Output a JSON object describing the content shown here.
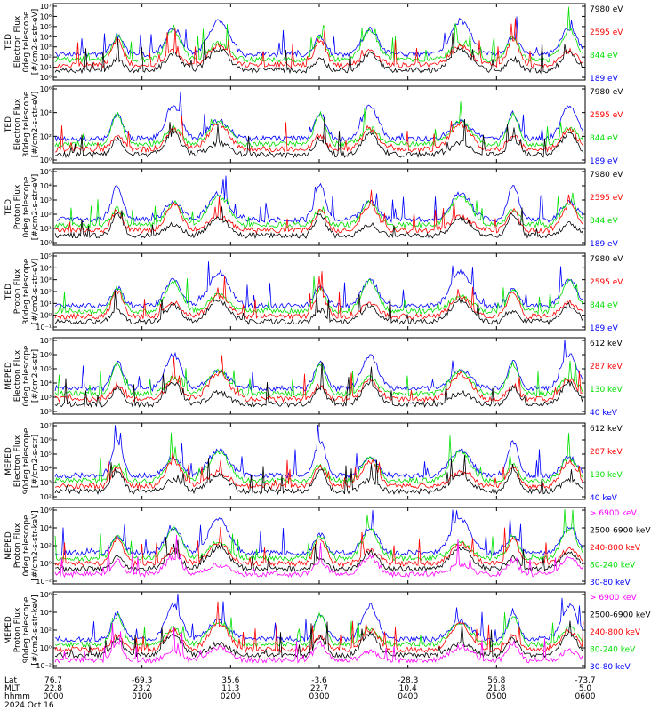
{
  "chart_data": {
    "type": "line",
    "date": "2024 Oct 16",
    "colors": {
      "black": "#000000",
      "red": "#ff0000",
      "green": "#00e000",
      "blue": "#0000ff",
      "magenta": "#ff00ff"
    },
    "x_axis": {
      "row_labels": [
        "Lat",
        "MLT",
        "hhmm"
      ],
      "ticks": [
        {
          "Lat": "76.7",
          "MLT": "22.8",
          "hhmm": "0000"
        },
        {
          "Lat": "-69.3",
          "MLT": "23.2",
          "hhmm": "0100"
        },
        {
          "Lat": "35.6",
          "MLT": "11.3",
          "hhmm": "0200"
        },
        {
          "Lat": "-3.6",
          "MLT": "22.7",
          "hhmm": "0300"
        },
        {
          "Lat": "-28.3",
          "MLT": "10.4",
          "hhmm": "0400"
        },
        {
          "Lat": "56.8",
          "MLT": "21.8",
          "hhmm": "0500"
        },
        {
          "Lat": "-73.7",
          "MLT": "5.0",
          "hhmm": "0600"
        }
      ]
    },
    "panels": [
      {
        "ylabel": [
          "TED",
          "Electron Flux",
          "0deg telescope",
          "[#/cm2-s-str-eV]"
        ],
        "yticks": [
          "10⁷",
          "10⁶",
          "10⁵",
          "10⁴",
          "10³",
          "10²",
          "10¹",
          "10⁰"
        ],
        "series": [
          {
            "name": "7980 eV",
            "color": "black"
          },
          {
            "name": "2595 eV",
            "color": "red"
          },
          {
            "name": "844 eV",
            "color": "green"
          },
          {
            "name": "189 eV",
            "color": "blue"
          }
        ]
      },
      {
        "ylabel": [
          "TED",
          "Electron Flux",
          "30deg telescope",
          "[#/cm2-s-str-eV]"
        ],
        "yticks": [
          "10⁶",
          "10⁴",
          "10²",
          "10⁰"
        ],
        "series": [
          {
            "name": "7980 eV",
            "color": "black"
          },
          {
            "name": "2595 eV",
            "color": "red"
          },
          {
            "name": "844 eV",
            "color": "green"
          },
          {
            "name": "189 eV",
            "color": "blue"
          }
        ]
      },
      {
        "ylabel": [
          "TED",
          "Proton Flux",
          "0deg telescope",
          "[#/cm2-s-str-eV]"
        ],
        "yticks": [
          "10⁵",
          "10⁴",
          "10³",
          "10²",
          "10¹",
          "10⁰"
        ],
        "series": [
          {
            "name": "7980 eV",
            "color": "black"
          },
          {
            "name": "2595 eV",
            "color": "red"
          },
          {
            "name": "844 eV",
            "color": "green"
          },
          {
            "name": "189 eV",
            "color": "blue"
          }
        ]
      },
      {
        "ylabel": [
          "TED",
          "Proton Flux",
          "30deg telescope",
          "[#/cm2-s-str-eV]"
        ],
        "yticks": [
          "10⁵",
          "10⁴",
          "10³",
          "10²",
          "10¹",
          "10⁰",
          "10⁻¹"
        ],
        "series": [
          {
            "name": "7980 eV",
            "color": "black"
          },
          {
            "name": "2595 eV",
            "color": "red"
          },
          {
            "name": "844 eV",
            "color": "green"
          },
          {
            "name": "189 eV",
            "color": "blue"
          }
        ]
      },
      {
        "ylabel": [
          "MEPED",
          "Electron Flux",
          "0deg telescope",
          "[#/cm2-s-str]"
        ],
        "yticks": [
          "10⁷",
          "10⁶",
          "10⁵",
          "10⁴",
          "10³",
          "10²"
        ],
        "series": [
          {
            "name": "612 keV",
            "color": "black"
          },
          {
            "name": "287 keV",
            "color": "red"
          },
          {
            "name": "130 keV",
            "color": "green"
          },
          {
            "name": "40 keV",
            "color": "blue"
          }
        ]
      },
      {
        "ylabel": [
          "MEPED",
          "Electron Flux",
          "90deg telescope",
          "[#/cm2-s-str]"
        ],
        "yticks": [
          "10⁷",
          "10⁶",
          "10⁵",
          "10⁴",
          "10³",
          "10²"
        ],
        "series": [
          {
            "name": "612 keV",
            "color": "black"
          },
          {
            "name": "287 keV",
            "color": "red"
          },
          {
            "name": "130 keV",
            "color": "green"
          },
          {
            "name": "40 keV",
            "color": "blue"
          }
        ]
      },
      {
        "ylabel": [
          "MEPED",
          "Proton Flux",
          "0deg telescope",
          "[#/cm2-s-str-keV]"
        ],
        "yticks": [
          "10⁶",
          "10⁴",
          "10²",
          "10⁰",
          "10⁻²"
        ],
        "series": [
          {
            "name": "> 6900 keV",
            "color": "magenta"
          },
          {
            "name": "2500-6900 keV",
            "color": "black"
          },
          {
            "name": "240-800 keV",
            "color": "red"
          },
          {
            "name": "80-240 keV",
            "color": "green"
          },
          {
            "name": "30-80 keV",
            "color": "blue"
          }
        ]
      },
      {
        "ylabel": [
          "MEPED",
          "Proton Flux",
          "90deg telescope",
          "[#/cm2-s-str-keV]"
        ],
        "yticks": [
          "10⁶",
          "10⁴",
          "10²",
          "10⁰",
          "10⁻²"
        ],
        "series": [
          {
            "name": "> 6900 keV",
            "color": "magenta"
          },
          {
            "name": "2500-6900 keV",
            "color": "black"
          },
          {
            "name": "240-800 keV",
            "color": "red"
          },
          {
            "name": "80-240 keV",
            "color": "green"
          },
          {
            "name": "30-80 keV",
            "color": "blue"
          }
        ]
      }
    ]
  }
}
